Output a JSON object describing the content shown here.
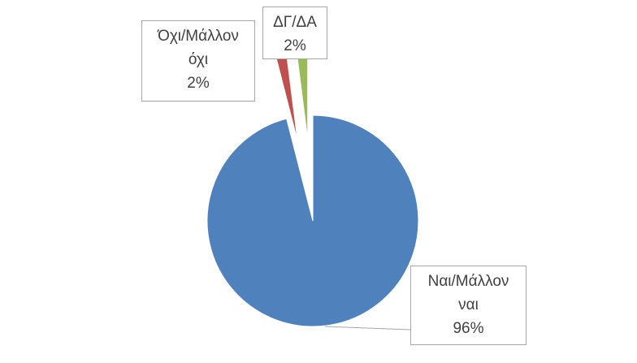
{
  "chart_data": {
    "type": "pie",
    "categories": [
      "Ναι/Μάλλον ναι",
      "Όχι/Μάλλον όχι",
      "ΔΓ/ΔΑ"
    ],
    "values": [
      96,
      2,
      2
    ],
    "value_labels": [
      "96%",
      "2%",
      "2%"
    ],
    "colors": [
      "#4f81bd",
      "#c0504d",
      "#9bbb59"
    ]
  }
}
